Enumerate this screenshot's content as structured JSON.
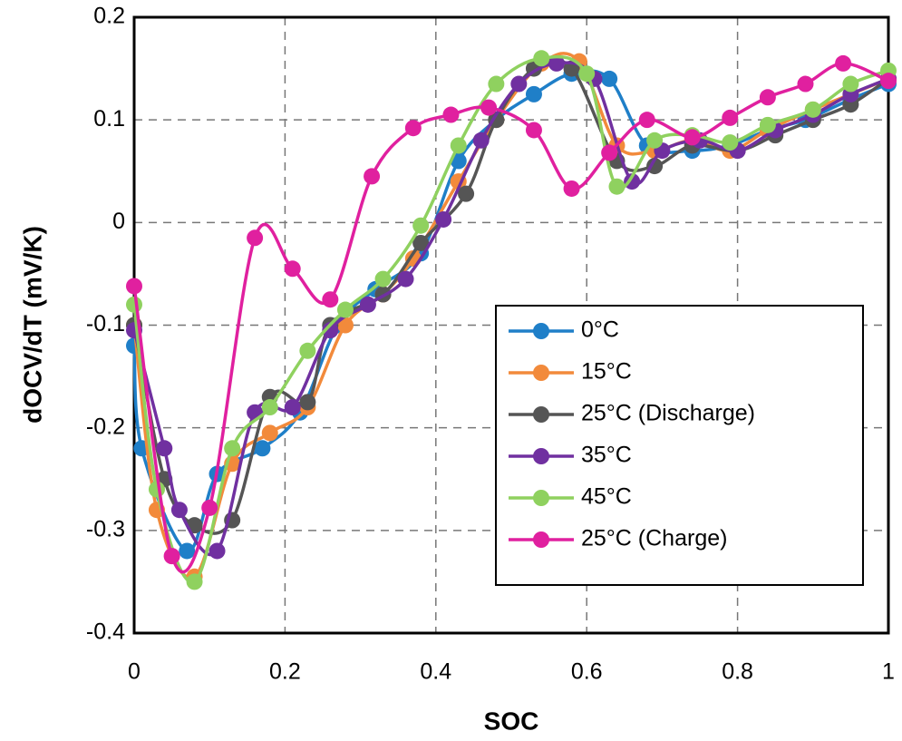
{
  "chart_data": {
    "type": "line",
    "x_label": "SOC",
    "y_label": "dOCV/dT (mV/K)",
    "xlim": [
      0,
      1
    ],
    "xticks": [
      0,
      0.2,
      0.4,
      0.6,
      0.8,
      1
    ],
    "ylim": [
      -0.4,
      0.2
    ],
    "yticks": [
      -0.4,
      -0.3,
      -0.2,
      -0.1,
      0,
      0.1,
      0.2
    ],
    "grid": true,
    "legend": "right",
    "series": [
      {
        "name": "0°C",
        "color": "#1f7fc8",
        "x": [
          0,
          0.01,
          0.07,
          0.11,
          0.17,
          0.22,
          0.27,
          0.32,
          0.38,
          0.43,
          0.48,
          0.53,
          0.58,
          0.63,
          0.68,
          0.74,
          0.79,
          0.84,
          0.89,
          0.95,
          1.0
        ],
        "values": [
          -0.12,
          -0.22,
          -0.32,
          -0.245,
          -0.22,
          -0.185,
          -0.1,
          -0.065,
          -0.03,
          0.06,
          0.1,
          0.125,
          0.145,
          0.14,
          0.075,
          0.07,
          0.075,
          0.09,
          0.1,
          0.12,
          0.135
        ]
      },
      {
        "name": "15°C",
        "color": "#f28a3b",
        "x": [
          0,
          0.03,
          0.08,
          0.13,
          0.18,
          0.23,
          0.28,
          0.33,
          0.37,
          0.43,
          0.48,
          0.54,
          0.59,
          0.64,
          0.69,
          0.74,
          0.79,
          0.84,
          0.9,
          0.95,
          1.0
        ],
        "values": [
          -0.1,
          -0.28,
          -0.345,
          -0.235,
          -0.205,
          -0.18,
          -0.1,
          -0.07,
          -0.035,
          0.04,
          0.1,
          0.155,
          0.157,
          0.075,
          0.07,
          0.08,
          0.07,
          0.09,
          0.11,
          0.125,
          0.14
        ]
      },
      {
        "name": "25°C (Discharge)",
        "color": "#555555",
        "x": [
          0,
          0.04,
          0.08,
          0.13,
          0.18,
          0.23,
          0.26,
          0.33,
          0.38,
          0.44,
          0.48,
          0.53,
          0.58,
          0.64,
          0.69,
          0.74,
          0.8,
          0.85,
          0.9,
          0.95,
          1.0
        ],
        "values": [
          -0.1,
          -0.25,
          -0.295,
          -0.29,
          -0.17,
          -0.175,
          -0.1,
          -0.07,
          -0.02,
          0.028,
          0.1,
          0.15,
          0.15,
          0.06,
          0.055,
          0.075,
          0.07,
          0.085,
          0.1,
          0.115,
          0.14
        ]
      },
      {
        "name": "35°C",
        "color": "#7030a0",
        "x": [
          0,
          0.04,
          0.06,
          0.11,
          0.16,
          0.21,
          0.26,
          0.31,
          0.36,
          0.41,
          0.46,
          0.51,
          0.56,
          0.61,
          0.66,
          0.7,
          0.75,
          0.8,
          0.85,
          0.9,
          0.95,
          1.0
        ],
        "values": [
          -0.105,
          -0.22,
          -0.28,
          -0.32,
          -0.185,
          -0.18,
          -0.105,
          -0.08,
          -0.055,
          0.003,
          0.08,
          0.135,
          0.155,
          0.14,
          0.04,
          0.07,
          0.08,
          0.07,
          0.09,
          0.105,
          0.125,
          0.14
        ]
      },
      {
        "name": "45°C",
        "color": "#8fd15f",
        "x": [
          0,
          0.03,
          0.08,
          0.13,
          0.18,
          0.23,
          0.28,
          0.33,
          0.38,
          0.43,
          0.48,
          0.54,
          0.6,
          0.64,
          0.69,
          0.74,
          0.79,
          0.84,
          0.9,
          0.95,
          1.0
        ],
        "values": [
          -0.08,
          -0.26,
          -0.35,
          -0.22,
          -0.18,
          -0.125,
          -0.085,
          -0.055,
          -0.003,
          0.075,
          0.135,
          0.16,
          0.145,
          0.035,
          0.08,
          0.085,
          0.078,
          0.095,
          0.11,
          0.135,
          0.148
        ]
      },
      {
        "name": "25°C (Charge)",
        "color": "#e0209f",
        "x": [
          0,
          0.05,
          0.1,
          0.16,
          0.21,
          0.26,
          0.315,
          0.37,
          0.42,
          0.47,
          0.53,
          0.58,
          0.63,
          0.68,
          0.74,
          0.79,
          0.84,
          0.89,
          0.94,
          1.0
        ],
        "values": [
          -0.062,
          -0.325,
          -0.278,
          -0.015,
          -0.045,
          -0.075,
          0.045,
          0.092,
          0.105,
          0.112,
          0.09,
          0.033,
          0.068,
          0.1,
          0.083,
          0.102,
          0.122,
          0.135,
          0.155,
          0.138
        ]
      }
    ]
  }
}
